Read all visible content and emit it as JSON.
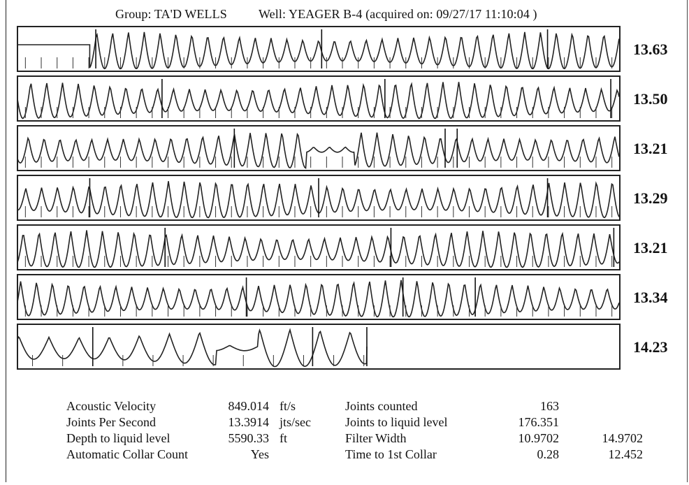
{
  "header": {
    "group_text": "Group: TA'D WELLS",
    "well_text": "Well: YEAGER B-4 (acquired on: 09/27/17 11:10:04 )"
  },
  "chart_data": {
    "type": "line",
    "title": "",
    "panels": [
      {
        "rate": "13.63",
        "cycles": 38,
        "noise_start": 0.12,
        "collars": [
          0.13,
          0.505,
          0.88
        ],
        "full": true
      },
      {
        "rate": "13.50",
        "cycles": 38,
        "collars": [
          0.24,
          0.61,
          0.985
        ],
        "full": true
      },
      {
        "rate": "13.21",
        "cycles": 38,
        "collars": [
          0.36,
          0.71,
          0.73
        ],
        "flat": [
          0.48,
          0.56
        ],
        "full": true
      },
      {
        "rate": "13.29",
        "cycles": 38,
        "collars": [
          0.12,
          0.5,
          0.88
        ],
        "full": true
      },
      {
        "rate": "13.21",
        "cycles": 38,
        "collars": [
          0.245,
          0.62,
          0.99
        ],
        "full": true
      },
      {
        "rate": "13.34",
        "cycles": 38,
        "collars": [
          0.38,
          0.64,
          0.76
        ],
        "full": true
      },
      {
        "rate": "14.23",
        "cycles": 20,
        "collars": [
          0.125,
          0.49
        ],
        "flat": [
          0.33,
          0.4
        ],
        "end": 0.58,
        "full": false
      }
    ]
  },
  "stats": {
    "rows": [
      {
        "label": "Acoustic Velocity",
        "value": "849.014",
        "unit": "ft/s",
        "label2": "Joints counted",
        "value2": "163",
        "value3": ""
      },
      {
        "label": "Joints Per Second",
        "value": "13.3914",
        "unit": "jts/sec",
        "label2": "Joints to liquid level",
        "value2": "176.351",
        "value3": ""
      },
      {
        "label": "Depth to liquid level",
        "value": "5590.33",
        "unit": "ft",
        "label2": "Filter Width",
        "value2": "10.9702",
        "value3": "14.9702"
      },
      {
        "label": "Automatic Collar Count",
        "value": "Yes",
        "unit": "",
        "label2": "Time to 1st Collar",
        "value2": "0.28",
        "value3": "12.452"
      }
    ]
  }
}
